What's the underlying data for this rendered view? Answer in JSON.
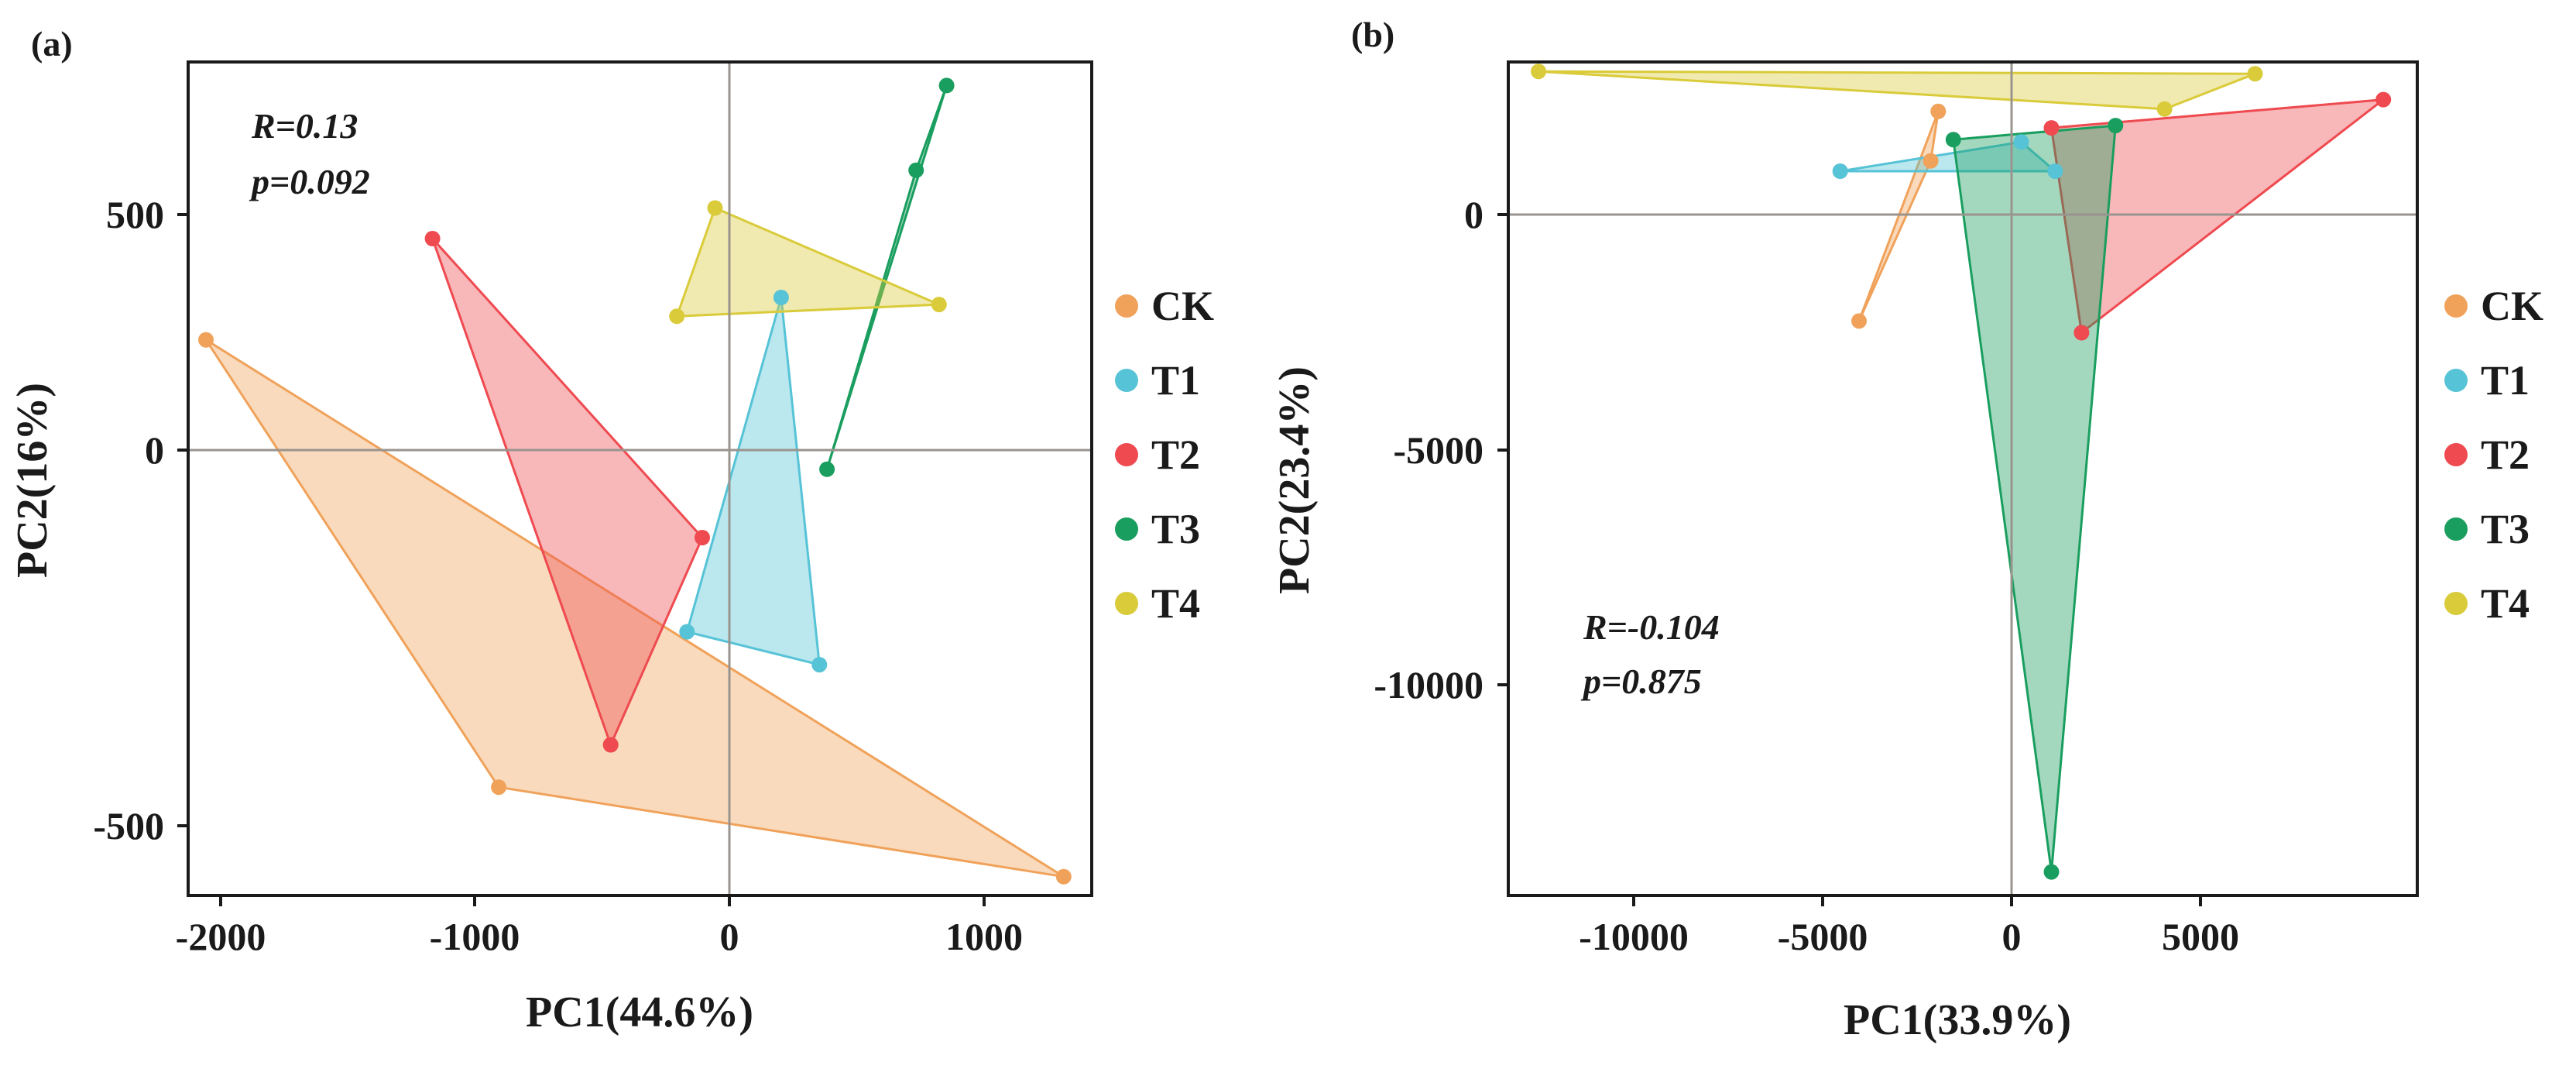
{
  "chart_data": [
    {
      "type": "scatter",
      "panel_label": "(a)",
      "xlabel": "PC1(44.6%)",
      "ylabel": "PC2(16%)",
      "xlim": [
        -2100,
        1450
      ],
      "ylim": [
        -960,
        810
      ],
      "x_ticks": [
        -2000,
        -1000,
        0,
        1000
      ],
      "x_tick_labels": [
        "-2000",
        "-1000",
        "0",
        "1000"
      ],
      "y_ticks": [
        -500,
        0,
        500
      ],
      "y_tick_labels": [
        "-500",
        "0",
        "500"
      ],
      "stats": {
        "r": "R=0.13",
        "p": "p=0.092"
      },
      "series": [
        {
          "name": "CK",
          "color": "#F0A25A",
          "points": [
            [
              -2030,
              220
            ],
            [
              -880,
              -730
            ],
            [
              1340,
              -920
            ],
            [
              -440,
              -640
            ]
          ],
          "hull": [
            [
              -2030,
              220
            ],
            [
              -880,
              -730
            ],
            [
              1340,
              -920
            ]
          ]
        },
        {
          "name": "T1",
          "color": "#56C3D6",
          "points": [
            [
              230,
              310
            ],
            [
              -140,
              -400
            ],
            [
              380,
              -470
            ]
          ],
          "hull": [
            [
              230,
              310
            ],
            [
              -140,
              -400
            ],
            [
              380,
              -470
            ]
          ]
        },
        {
          "name": "T2",
          "color": "#EE4A50",
          "points": [
            [
              -1140,
              435
            ],
            [
              -80,
              -200
            ],
            [
              -440,
              -640
            ]
          ],
          "hull": [
            [
              -1140,
              435
            ],
            [
              -80,
              -200
            ],
            [
              -440,
              -640
            ]
          ]
        },
        {
          "name": "T3",
          "color": "#1A9E5F",
          "points": [
            [
              880,
              760
            ],
            [
              760,
              580
            ],
            [
              410,
              -55
            ]
          ],
          "hull": [
            [
              880,
              760
            ],
            [
              760,
              580
            ],
            [
              410,
              -55
            ]
          ]
        },
        {
          "name": "T4",
          "color": "#D9CB3A",
          "points": [
            [
              -30,
              500
            ],
            [
              -180,
              270
            ],
            [
              850,
              295
            ]
          ],
          "hull": [
            [
              -30,
              500
            ],
            [
              -180,
              270
            ],
            [
              850,
              295
            ]
          ]
        }
      ]
    },
    {
      "type": "scatter",
      "panel_label": "(b)",
      "xlabel": "PC1(33.9%)",
      "ylabel": "PC2(23.4%)",
      "xlim": [
        -13500,
        10600
      ],
      "ylim": [
        -14700,
        3000
      ],
      "x_ticks": [
        -10000,
        -5000,
        0,
        5000
      ],
      "x_tick_labels": [
        "-10000",
        "-5000",
        "0",
        "5000"
      ],
      "y_ticks": [
        -10000,
        -5000,
        0
      ],
      "y_tick_labels": [
        "-10000",
        "-5000",
        "0"
      ],
      "stats": {
        "r": "R=-0.104",
        "p": "p=0.875"
      },
      "series": [
        {
          "name": "CK",
          "color": "#F0A25A",
          "points": [
            [
              -2300,
              900
            ],
            [
              -2100,
              1950
            ],
            [
              -4200,
              -2500
            ]
          ],
          "hull": [
            [
              -2300,
              900
            ],
            [
              -2100,
              1950
            ],
            [
              -4200,
              -2500
            ]
          ]
        },
        {
          "name": "T1",
          "color": "#56C3D6",
          "points": [
            [
              -4700,
              680
            ],
            [
              100,
              1300
            ],
            [
              1000,
              680
            ]
          ],
          "hull": [
            [
              -4700,
              680
            ],
            [
              100,
              1300
            ],
            [
              1000,
              680
            ]
          ]
        },
        {
          "name": "T2",
          "color": "#EE4A50",
          "points": [
            [
              9700,
              2200
            ],
            [
              900,
              1600
            ],
            [
              1700,
              -2750
            ]
          ],
          "hull": [
            [
              9700,
              2200
            ],
            [
              900,
              1600
            ],
            [
              1700,
              -2750
            ]
          ]
        },
        {
          "name": "T3",
          "color": "#1A9E5F",
          "points": [
            [
              -1700,
              1350
            ],
            [
              2600,
              1650
            ],
            [
              900,
              -14200
            ]
          ],
          "hull": [
            [
              -1700,
              1350
            ],
            [
              2600,
              1650
            ],
            [
              900,
              -14200
            ]
          ]
        },
        {
          "name": "T4",
          "color": "#D9CB3A",
          "points": [
            [
              -12700,
              2800
            ],
            [
              6300,
              2750
            ],
            [
              3900,
              2000
            ]
          ],
          "hull": [
            [
              -12700,
              2800
            ],
            [
              6300,
              2750
            ],
            [
              3900,
              2000
            ]
          ]
        }
      ]
    }
  ],
  "legend": [
    {
      "name": "CK",
      "color": "#F0A25A"
    },
    {
      "name": "T1",
      "color": "#56C3D6"
    },
    {
      "name": "T2",
      "color": "#EE4A50"
    },
    {
      "name": "T3",
      "color": "#1A9E5F"
    },
    {
      "name": "T4",
      "color": "#D9CB3A"
    }
  ]
}
